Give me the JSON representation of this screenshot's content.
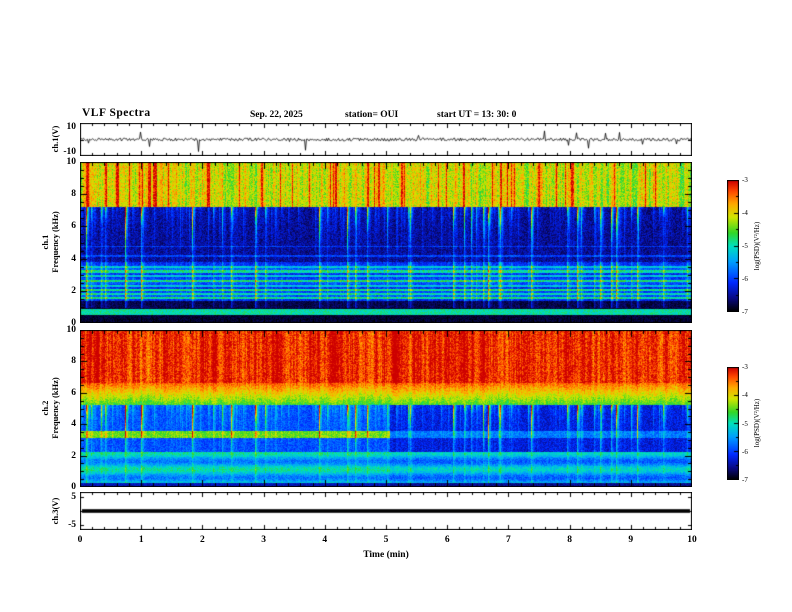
{
  "header": {
    "title": "VLF Spectra",
    "date": "Sep. 22, 2025",
    "station": "station= OUI",
    "start_ut": "start UT  =    13: 30: 0"
  },
  "axes": {
    "x": {
      "label": "Time (min)",
      "ticks": [
        "0",
        "1",
        "2",
        "3",
        "4",
        "5",
        "6",
        "7",
        "8",
        "9",
        "10"
      ]
    },
    "panel1": {
      "ylabel": "ch.1(V)",
      "ticks": [
        "10",
        "-10"
      ]
    },
    "panel2": {
      "ylabel_line1": "ch.1",
      "ylabel_line2": "Frequency (kHz)",
      "ticks": [
        "10",
        "8",
        "6",
        "4",
        "2",
        "0"
      ]
    },
    "panel3": {
      "ylabel_line1": "ch.2",
      "ylabel_line2": "Frequency (kHz)",
      "ticks": [
        "10",
        "8",
        "6",
        "4",
        "2",
        "0"
      ]
    },
    "panel4": {
      "ylabel": "ch.3(V)",
      "ticks": [
        "5",
        "-5"
      ]
    },
    "colorbar": {
      "label": "log(PSD)(V²/Hz)",
      "ticks": [
        "-3",
        "-4",
        "-5",
        "-6",
        "-7"
      ]
    }
  },
  "chart_data": {
    "type": "heatmap",
    "title": "VLF Spectra",
    "xlabel": "Time (min)",
    "xlim": [
      0,
      10
    ],
    "seed": 20250922,
    "zlim": [
      -7,
      -3
    ],
    "zlabel": "log(PSD)(V²/Hz)",
    "sferic_rate": 0.075,
    "colormap_stops": [
      [
        0.0,
        0,
        0,
        0
      ],
      [
        0.1,
        10,
        10,
        130
      ],
      [
        0.22,
        0,
        40,
        255
      ],
      [
        0.38,
        0,
        160,
        255
      ],
      [
        0.5,
        0,
        225,
        190
      ],
      [
        0.6,
        50,
        215,
        40
      ],
      [
        0.72,
        210,
        230,
        0
      ],
      [
        0.82,
        255,
        170,
        0
      ],
      [
        0.92,
        255,
        70,
        0
      ],
      [
        1.0,
        205,
        0,
        0
      ]
    ],
    "panels": [
      {
        "id": "ch1_waveform",
        "type": "line",
        "ylabel": "ch.1(V)",
        "ylim": [
          -13,
          13
        ],
        "yticks": [
          10,
          -10
        ],
        "description": "broadband VLF noise ~ ±1 V with sparse impulsive sferic spikes to ±9 V",
        "baseline": 0
      },
      {
        "id": "ch1_spectrogram",
        "type": "heatmap",
        "ylabel": "ch.1 Frequency (kHz)",
        "ylim": [
          0,
          10
        ],
        "bands": [
          {
            "f_range": [
              7.2,
              10.0
            ],
            "level": -4.2,
            "description": "strong green-yellow band with vertical orange-red streaks"
          },
          {
            "f_range": [
              3.8,
              7.2
            ],
            "level": -6.5,
            "description": "dark blue background with downward green sferic streaks"
          },
          {
            "f_range": [
              1.35,
              3.8
            ],
            "level": -6.0,
            "description": "blue region with narrow horizontal green transmitter lines"
          },
          {
            "f_range": [
              0.5,
              0.9
            ],
            "level": -4.9,
            "description": "narrow green band near bottom edge"
          }
        ],
        "lines_khz": [
          [
            1.55,
            1.1
          ],
          [
            1.8,
            0.85
          ],
          [
            2.05,
            1.2
          ],
          [
            2.3,
            0.8
          ],
          [
            2.6,
            1.05
          ],
          [
            2.9,
            0.9
          ],
          [
            3.2,
            1.0
          ],
          [
            3.5,
            0.7
          ],
          [
            4.15,
            0.5
          ],
          [
            4.75,
            0.45
          ]
        ]
      },
      {
        "id": "ch2_spectrogram",
        "type": "heatmap",
        "ylabel": "ch.2 Frequency (kHz)",
        "ylim": [
          0,
          10
        ],
        "transition_min": 5.05,
        "bands": [
          {
            "f_range": [
              6.6,
              10.0
            ],
            "level": -3.3,
            "description": "saturated red-orange band"
          },
          {
            "f_range": [
              5.2,
              6.6
            ],
            "level": -4.3,
            "description": "yellow-green transition band"
          },
          {
            "f_range": [
              2.2,
              5.2
            ],
            "level": -5.9,
            "description": "blue with green sferic streaks; horizontal green band 3.1-3.6 kHz strong before ~5 min, weaker after"
          },
          {
            "f_range": [
              0.0,
              2.2
            ],
            "level": -5.35,
            "description": "cyan-blue horizontal striping"
          }
        ]
      },
      {
        "id": "ch3_waveform",
        "type": "line",
        "ylabel": "ch.3(V)",
        "ylim": [
          -7,
          7
        ],
        "yticks": [
          5,
          -5
        ],
        "description": "flat trace at 0 V across full record",
        "value": 0
      }
    ]
  }
}
